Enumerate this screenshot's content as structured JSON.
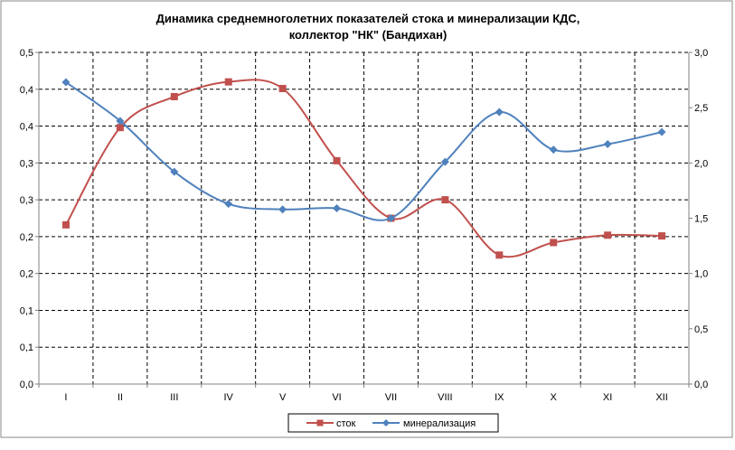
{
  "chart_data": {
    "type": "line",
    "title": [
      "Динамика среднемноголетних показателей стока и минерализации КДС,",
      "коллектор \"НК\" (Бандихан)"
    ],
    "categories": [
      "I",
      "II",
      "III",
      "IV",
      "V",
      "VI",
      "VII",
      "VIII",
      "IX",
      "X",
      "XI",
      "XII"
    ],
    "y_left": {
      "ticks": [
        "0,0",
        "0,1",
        "0,1",
        "0,2",
        "0,2",
        "0,3",
        "0,3",
        "0,4",
        "0,4",
        "0,5"
      ],
      "range": [
        0,
        0.45
      ]
    },
    "y_right": {
      "ticks": [
        "0,0",
        "0,5",
        "1,0",
        "1,5",
        "2,0",
        "2,5",
        "3,0"
      ],
      "range": [
        0,
        3.0
      ]
    },
    "series": [
      {
        "name": "сток",
        "axis": "left",
        "color": "#C0504D",
        "marker": "square",
        "values": [
          0.216,
          0.348,
          0.39,
          0.41,
          0.401,
          0.303,
          0.225,
          0.25,
          0.175,
          0.192,
          0.202,
          0.201
        ]
      },
      {
        "name": "минерализация",
        "axis": "right",
        "color": "#4F81BD",
        "marker": "diamond",
        "values": [
          2.73,
          2.38,
          1.92,
          1.63,
          1.58,
          1.59,
          1.5,
          2.01,
          2.46,
          2.12,
          2.17,
          2.28
        ]
      }
    ],
    "grid": true,
    "legend": "bottom"
  },
  "colors": {
    "grid": "#000000",
    "axis": "#808080",
    "tick_text": "#000000"
  }
}
